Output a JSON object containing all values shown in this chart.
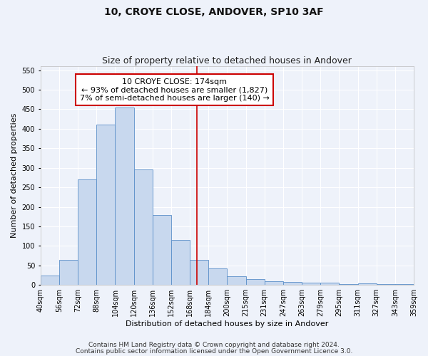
{
  "title": "10, CROYE CLOSE, ANDOVER, SP10 3AF",
  "subtitle": "Size of property relative to detached houses in Andover",
  "xlabel": "Distribution of detached houses by size in Andover",
  "ylabel": "Number of detached properties",
  "bar_left_edges": [
    40,
    56,
    72,
    88,
    104,
    120,
    136,
    152,
    168,
    184,
    200,
    216,
    232,
    248,
    264,
    280,
    296,
    312,
    328,
    344
  ],
  "bar_heights": [
    25,
    65,
    270,
    410,
    455,
    295,
    180,
    115,
    65,
    42,
    22,
    15,
    10,
    8,
    5,
    5,
    3,
    4,
    2,
    3
  ],
  "bin_width": 16,
  "bar_color": "#c8d8ee",
  "bar_edge_color": "#5b8fc9",
  "vline_x": 174,
  "vline_color": "#cc0000",
  "annotation_text": "10 CROYE CLOSE: 174sqm\n← 93% of detached houses are smaller (1,827)\n7% of semi-detached houses are larger (140) →",
  "annotation_box_color": "#ffffff",
  "annotation_box_edge": "#cc0000",
  "ylim": [
    0,
    560
  ],
  "yticks": [
    0,
    50,
    100,
    150,
    200,
    250,
    300,
    350,
    400,
    450,
    500,
    550
  ],
  "xtick_labels": [
    "40sqm",
    "56sqm",
    "72sqm",
    "88sqm",
    "104sqm",
    "120sqm",
    "136sqm",
    "152sqm",
    "168sqm",
    "184sqm",
    "200sqm",
    "215sqm",
    "231sqm",
    "247sqm",
    "263sqm",
    "279sqm",
    "295sqm",
    "311sqm",
    "327sqm",
    "343sqm",
    "359sqm"
  ],
  "footer_line1": "Contains HM Land Registry data © Crown copyright and database right 2024.",
  "footer_line2": "Contains public sector information licensed under the Open Government Licence 3.0.",
  "bg_color": "#eef2fa",
  "grid_color": "#ffffff",
  "title_fontsize": 10,
  "subtitle_fontsize": 9,
  "axis_label_fontsize": 8,
  "tick_fontsize": 7,
  "annotation_fontsize": 8,
  "footer_fontsize": 6.5
}
